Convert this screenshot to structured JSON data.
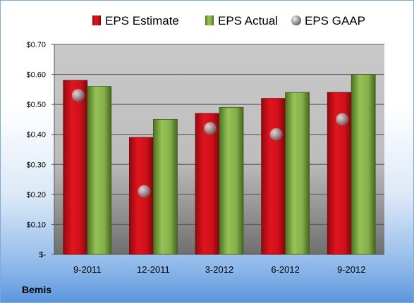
{
  "company": "Bemis",
  "chart_data": {
    "type": "bar",
    "categories": [
      "9-2011",
      "12-2011",
      "3-2012",
      "6-2012",
      "9-2012"
    ],
    "series": [
      {
        "name": "EPS Estimate",
        "values": [
          0.58,
          0.39,
          0.47,
          0.52,
          0.54
        ],
        "color": "#e0141e"
      },
      {
        "name": "EPS Actual",
        "values": [
          0.56,
          0.45,
          0.49,
          0.54,
          0.6
        ],
        "color": "#7aa63a"
      },
      {
        "name": "EPS GAAP",
        "marker": "scatter",
        "values": [
          0.53,
          0.21,
          0.42,
          0.4,
          0.45
        ],
        "color": "#b8b8b8"
      }
    ],
    "ylim": [
      0,
      0.7
    ],
    "yticks": [
      0,
      0.1,
      0.2,
      0.3,
      0.4,
      0.5,
      0.6,
      0.7
    ],
    "ytick_labels": [
      "$-",
      "$0.10",
      "$0.20",
      "$0.30",
      "$0.40",
      "$0.50",
      "$0.60",
      "$0.70"
    ],
    "legend_position": "top",
    "grid": true
  }
}
